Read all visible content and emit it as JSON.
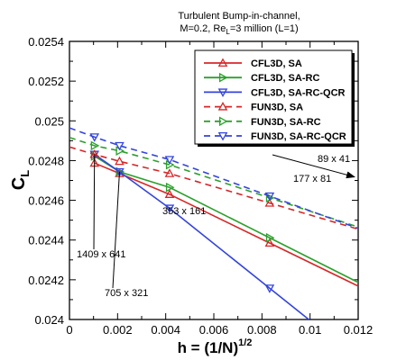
{
  "chart_data": {
    "type": "line",
    "title_line1": "Turbulent Bump-in-channel,",
    "title_line2_prefix": "M=0.2, Re",
    "title_line2_sub": "L",
    "title_line2_suffix": "=3 million (L=1)",
    "xlabel": "h = (1/N)",
    "xlabel_sup": "1/2",
    "ylabel": "C",
    "ylabel_sub": "L",
    "xlim": [
      0,
      0.012
    ],
    "ylim": [
      0.024,
      0.0256
    ],
    "xticks": [
      "0",
      "0.002",
      "0.004",
      "0.006",
      "0.008",
      "0.01",
      "0.012"
    ],
    "yticks": [
      "0.024",
      "0.0242",
      "0.0244",
      "0.0246",
      "0.0248",
      "0.025",
      "0.0252",
      "0.0254"
    ],
    "x": [
      0.00104,
      0.00208,
      0.00416,
      0.00832
    ],
    "series": [
      {
        "name": "CFL3D, SA",
        "color": "#d62728",
        "marker": "triangle-up",
        "dash": false,
        "values": [
          0.0249,
          0.02484,
          0.02472,
          0.02444
        ]
      },
      {
        "name": "CFL3D, SA-RC",
        "color": "#2ca02c",
        "marker": "triangle-right",
        "dash": false,
        "values": [
          0.02494,
          0.02485,
          0.02476,
          0.02447
        ]
      },
      {
        "name": "CFL3D, SA-RC-QCR",
        "color": "#3344dd",
        "marker": "triangle-down",
        "dash": false,
        "values": [
          0.02495,
          0.02485,
          0.02464,
          0.02418
        ]
      },
      {
        "name": "FUN3D, SA",
        "color": "#d62728",
        "marker": "triangle-up",
        "dash": true,
        "values": [
          0.02495,
          0.02491,
          0.02484,
          0.02467
        ]
      },
      {
        "name": "FUN3D, SA-RC",
        "color": "#2ca02c",
        "marker": "triangle-right",
        "dash": true,
        "values": [
          0.025,
          0.02497,
          0.02489,
          0.0247
        ]
      },
      {
        "name": "FUN3D, SA-RC-QCR",
        "color": "#3344dd",
        "marker": "triangle-down",
        "dash": true,
        "values": [
          0.02505,
          0.025,
          0.02492,
          0.02471
        ]
      }
    ],
    "annotations": [
      {
        "text": "1409 x 641"
      },
      {
        "text": "705 x 321"
      },
      {
        "text": "353 x 161"
      },
      {
        "text": "177 x 81"
      },
      {
        "text": "89 x 41"
      }
    ]
  }
}
